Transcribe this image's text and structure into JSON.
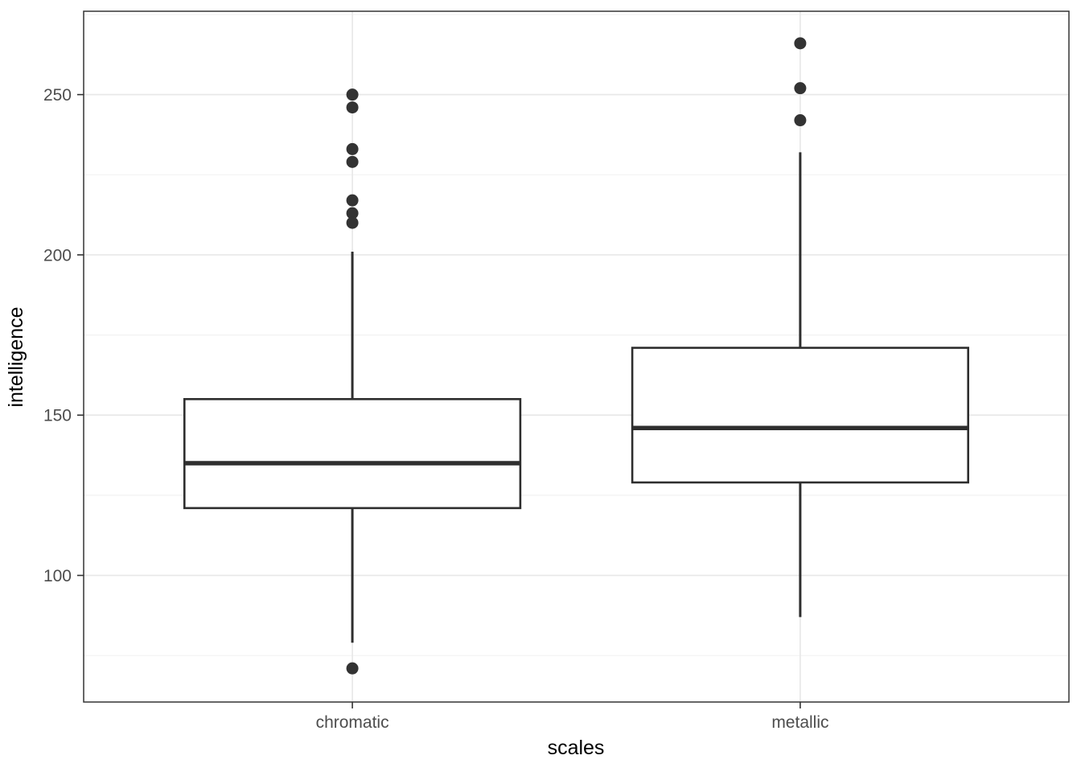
{
  "chart_data": {
    "type": "boxplot",
    "title": "",
    "xlabel": "scales",
    "ylabel": "intelligence",
    "categories": [
      "chromatic",
      "metallic"
    ],
    "yticks": [
      100,
      150,
      200,
      250
    ],
    "yticks_minor": [
      75,
      125,
      175,
      225,
      275
    ],
    "ylim": [
      60.5,
      276
    ],
    "legend": "none",
    "grid": "horizontal major+minor, vertical major at each category",
    "series": [
      {
        "name": "chromatic",
        "whisker_low": 79,
        "q1": 121,
        "median": 135,
        "q3": 155,
        "whisker_high": 201,
        "outliers": [
          250,
          246,
          233,
          229,
          217,
          213,
          210,
          71
        ]
      },
      {
        "name": "metallic",
        "whisker_low": 87,
        "q1": 129,
        "median": 146,
        "q3": 171,
        "whisker_high": 232,
        "outliers": [
          266,
          252,
          242
        ]
      }
    ],
    "colors": {
      "background": "#ffffff",
      "panel_fill": "#ffffff",
      "grid_major": "#e8e8e8",
      "grid_minor": "#f2f2f2",
      "panel_border": "#333333",
      "box_stroke": "#2e2e2e",
      "box_fill": "#ffffff",
      "outlier_fill": "#333333",
      "tick_label": "#4d4d4d",
      "axis_title": "#000000"
    }
  }
}
